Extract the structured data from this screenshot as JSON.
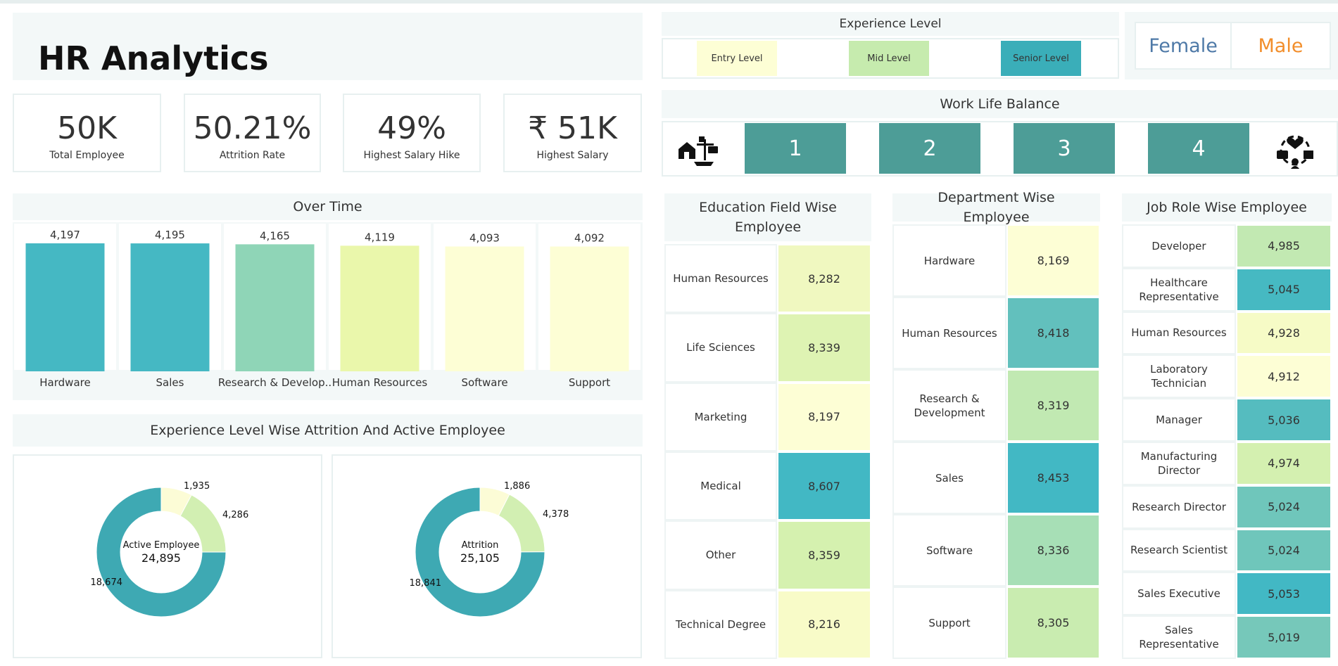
{
  "header": {
    "title": "HR Analytics"
  },
  "kpis": [
    {
      "value": "50K",
      "label": "Total Employee"
    },
    {
      "value": "50.21%",
      "label": "Attrition Rate"
    },
    {
      "value": "49%",
      "label": "Highest Salary Hike"
    },
    {
      "value": "₹ 51K",
      "label": "Highest Salary"
    }
  ],
  "experience_filter": {
    "title": "Experience Level",
    "levels": [
      "Entry Level",
      "Mid Level",
      "Senior Level"
    ]
  },
  "gender_filter": {
    "female": "Female",
    "male": "Male"
  },
  "work_life": {
    "title": "Work Life Balance",
    "values": [
      "1",
      "2",
      "3",
      "4"
    ]
  },
  "colors": {
    "teal_dark": "#3aaeb9",
    "teal": "#4d9d97",
    "mint": "#8fd5b7",
    "light_green": "#e9f6a9",
    "pale_yellow": "#fdfed5",
    "female": "#4e79a7",
    "male": "#f28e2b"
  },
  "chart_data": [
    {
      "type": "bar",
      "title": "Over Time",
      "categories": [
        "Hardware",
        "Sales",
        "Research & Develop..",
        "Human Resources",
        "Software",
        "Support"
      ],
      "values": [
        4197,
        4195,
        4165,
        4119,
        4093,
        4092
      ],
      "value_labels": [
        "4,197",
        "4,195",
        "4,165",
        "4,119",
        "4,093",
        "4,092"
      ],
      "bar_colors": [
        "#45b8c3",
        "#45b8c3",
        "#8fd5b7",
        "#eaf7ab",
        "#fdfed5",
        "#fdfed5"
      ]
    },
    {
      "type": "pie",
      "title": "Experience Level Wise Attrition And Active Employee",
      "center_label": "Active Employee",
      "center_value": "24,895",
      "slices": [
        {
          "value": 1935,
          "label": "1,935",
          "color": "#fcfcd6"
        },
        {
          "value": 4286,
          "label": "4,286",
          "color": "#d2efb2"
        },
        {
          "value": 18674,
          "label": "18,674",
          "color": "#3ea9b3"
        }
      ]
    },
    {
      "type": "pie",
      "center_label": "Attrition",
      "center_value": "25,105",
      "slices": [
        {
          "value": 1886,
          "label": "1,886",
          "color": "#fcfcd6"
        },
        {
          "value": 4378,
          "label": "4,378",
          "color": "#d2efb2"
        },
        {
          "value": 18841,
          "label": "18,841",
          "color": "#3ea9b3"
        }
      ]
    },
    {
      "type": "table",
      "title": "Education Field Wise Employee",
      "rows": [
        {
          "label": "Human Resources",
          "value": "8,282",
          "color": "#f0f8c0"
        },
        {
          "label": "Life Sciences",
          "value": "8,339",
          "color": "#def3b3"
        },
        {
          "label": "Marketing",
          "value": "8,197",
          "color": "#fdfed5"
        },
        {
          "label": "Medical",
          "value": "8,607",
          "color": "#42b8c4"
        },
        {
          "label": "Other",
          "value": "8,359",
          "color": "#d5f1af"
        },
        {
          "label": "Technical Degree",
          "value": "8,216",
          "color": "#f8fbc8"
        }
      ]
    },
    {
      "type": "table",
      "title": "Department Wise Employee",
      "rows": [
        {
          "label": "Hardware",
          "value": "8,169",
          "color": "#fdfed5"
        },
        {
          "label": "Human Resources",
          "value": "8,418",
          "color": "#62c0bd"
        },
        {
          "label": "Research & Development",
          "value": "8,319",
          "color": "#c1e9b2"
        },
        {
          "label": "Sales",
          "value": "8,453",
          "color": "#42b8c4"
        },
        {
          "label": "Software",
          "value": "8,336",
          "color": "#a7dfb6"
        },
        {
          "label": "Support",
          "value": "8,305",
          "color": "#c9ecb0"
        }
      ]
    },
    {
      "type": "table",
      "title": "Job Role Wise Employee",
      "rows": [
        {
          "label": "Developer",
          "value": "4,985",
          "color": "#c2e9b2"
        },
        {
          "label": "Healthcare Representative",
          "value": "5,045",
          "color": "#46b9c2"
        },
        {
          "label": "Human Resources",
          "value": "4,928",
          "color": "#f6fbc6"
        },
        {
          "label": "Laboratory Technician",
          "value": "4,912",
          "color": "#fdfed5"
        },
        {
          "label": "Manager",
          "value": "5,036",
          "color": "#55bcbf"
        },
        {
          "label": "Manufacturing Director",
          "value": "4,974",
          "color": "#d4f0b0"
        },
        {
          "label": "Research Director",
          "value": "5,024",
          "color": "#6fc6bb"
        },
        {
          "label": "Research Scientist",
          "value": "5,024",
          "color": "#6fc6bb"
        },
        {
          "label": "Sales Executive",
          "value": "5,053",
          "color": "#42b8c4"
        },
        {
          "label": "Sales Representative",
          "value": "5,019",
          "color": "#76c8ba"
        }
      ]
    }
  ]
}
